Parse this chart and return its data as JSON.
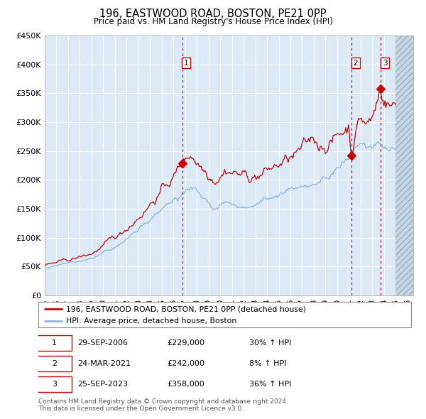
{
  "title": "196, EASTWOOD ROAD, BOSTON, PE21 0PP",
  "subtitle": "Price paid vs. HM Land Registry's House Price Index (HPI)",
  "background_color": "#ffffff",
  "plot_bg_color": "#dce9f7",
  "red_line_color": "#cc0000",
  "blue_line_color": "#85b8e0",
  "grid_color": "#ffffff",
  "xmin_year": 1995.0,
  "xmax_year": 2026.5,
  "ymin": 0,
  "ymax": 450000,
  "yticks": [
    0,
    50000,
    100000,
    150000,
    200000,
    250000,
    300000,
    350000,
    400000,
    450000
  ],
  "ytick_labels": [
    "£0",
    "£50K",
    "£100K",
    "£150K",
    "£200K",
    "£250K",
    "£300K",
    "£350K",
    "£400K",
    "£450K"
  ],
  "xtick_years": [
    1995,
    1996,
    1997,
    1998,
    1999,
    2000,
    2001,
    2002,
    2003,
    2004,
    2005,
    2006,
    2007,
    2008,
    2009,
    2010,
    2011,
    2012,
    2013,
    2014,
    2015,
    2016,
    2017,
    2018,
    2019,
    2020,
    2021,
    2022,
    2023,
    2024,
    2025,
    2026
  ],
  "purchase_dates": [
    2006.747,
    2021.228,
    2023.728
  ],
  "purchase_prices": [
    229000,
    242000,
    358000
  ],
  "purchase_labels": [
    "1",
    "2",
    "3"
  ],
  "legend_label_red": "196, EASTWOOD ROAD, BOSTON, PE21 0PP (detached house)",
  "legend_label_blue": "HPI: Average price, detached house, Boston",
  "table_rows": [
    [
      "1",
      "29-SEP-2006",
      "£229,000",
      "30% ↑ HPI"
    ],
    [
      "2",
      "24-MAR-2021",
      "£242,000",
      "8% ↑ HPI"
    ],
    [
      "3",
      "25-SEP-2023",
      "£358,000",
      "36% ↑ HPI"
    ]
  ],
  "footnote": "Contains HM Land Registry data © Crown copyright and database right 2024.\nThis data is licensed under the Open Government Licence v3.0."
}
